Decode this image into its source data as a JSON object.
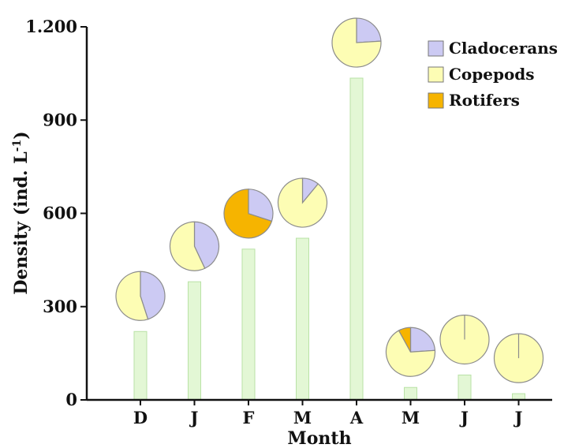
{
  "chart_data": {
    "type": "bar",
    "title": "",
    "xlabel": "Month",
    "ylabel_main": "Density (ind. L",
    "ylabel_sup": "-1",
    "ylabel_close": ")",
    "ylim": [
      0,
      1200
    ],
    "yticks": [
      {
        "value": 0,
        "label": "0"
      },
      {
        "value": 300,
        "label": "300"
      },
      {
        "value": 600,
        "label": "600"
      },
      {
        "value": 900,
        "label": "900"
      },
      {
        "value": 1200,
        "label": "1.200"
      }
    ],
    "categories": [
      "D",
      "J",
      "F",
      "M",
      "A",
      "M",
      "J",
      "J"
    ],
    "values": [
      220,
      380,
      485,
      520,
      1035,
      40,
      80,
      20
    ],
    "bar_color": "#e3f7d5",
    "bar_stroke": "#b9e2a6",
    "composition": {
      "series": [
        {
          "name": "Cladocerans",
          "color": "#cccaf3"
        },
        {
          "name": "Copepods",
          "color": "#fdfdb4"
        },
        {
          "name": "Rotifers",
          "color": "#f6b400"
        }
      ],
      "pies": [
        {
          "cladocerans": 0.45,
          "copepods": 0.55,
          "rotifers": 0.0
        },
        {
          "cladocerans": 0.43,
          "copepods": 0.57,
          "rotifers": 0.0
        },
        {
          "cladocerans": 0.3,
          "copepods": 0.0,
          "rotifers": 0.7
        },
        {
          "cladocerans": 0.11,
          "copepods": 0.89,
          "rotifers": 0.0
        },
        {
          "cladocerans": 0.24,
          "copepods": 0.76,
          "rotifers": 0.0
        },
        {
          "cladocerans": 0.24,
          "copepods": 0.68,
          "rotifers": 0.08
        },
        {
          "cladocerans": 0.0,
          "copepods": 1.0,
          "rotifers": 0.0
        },
        {
          "cladocerans": 0.0,
          "copepods": 1.0,
          "rotifers": 0.0
        }
      ]
    },
    "legend_position": "top-right",
    "grid": false
  }
}
